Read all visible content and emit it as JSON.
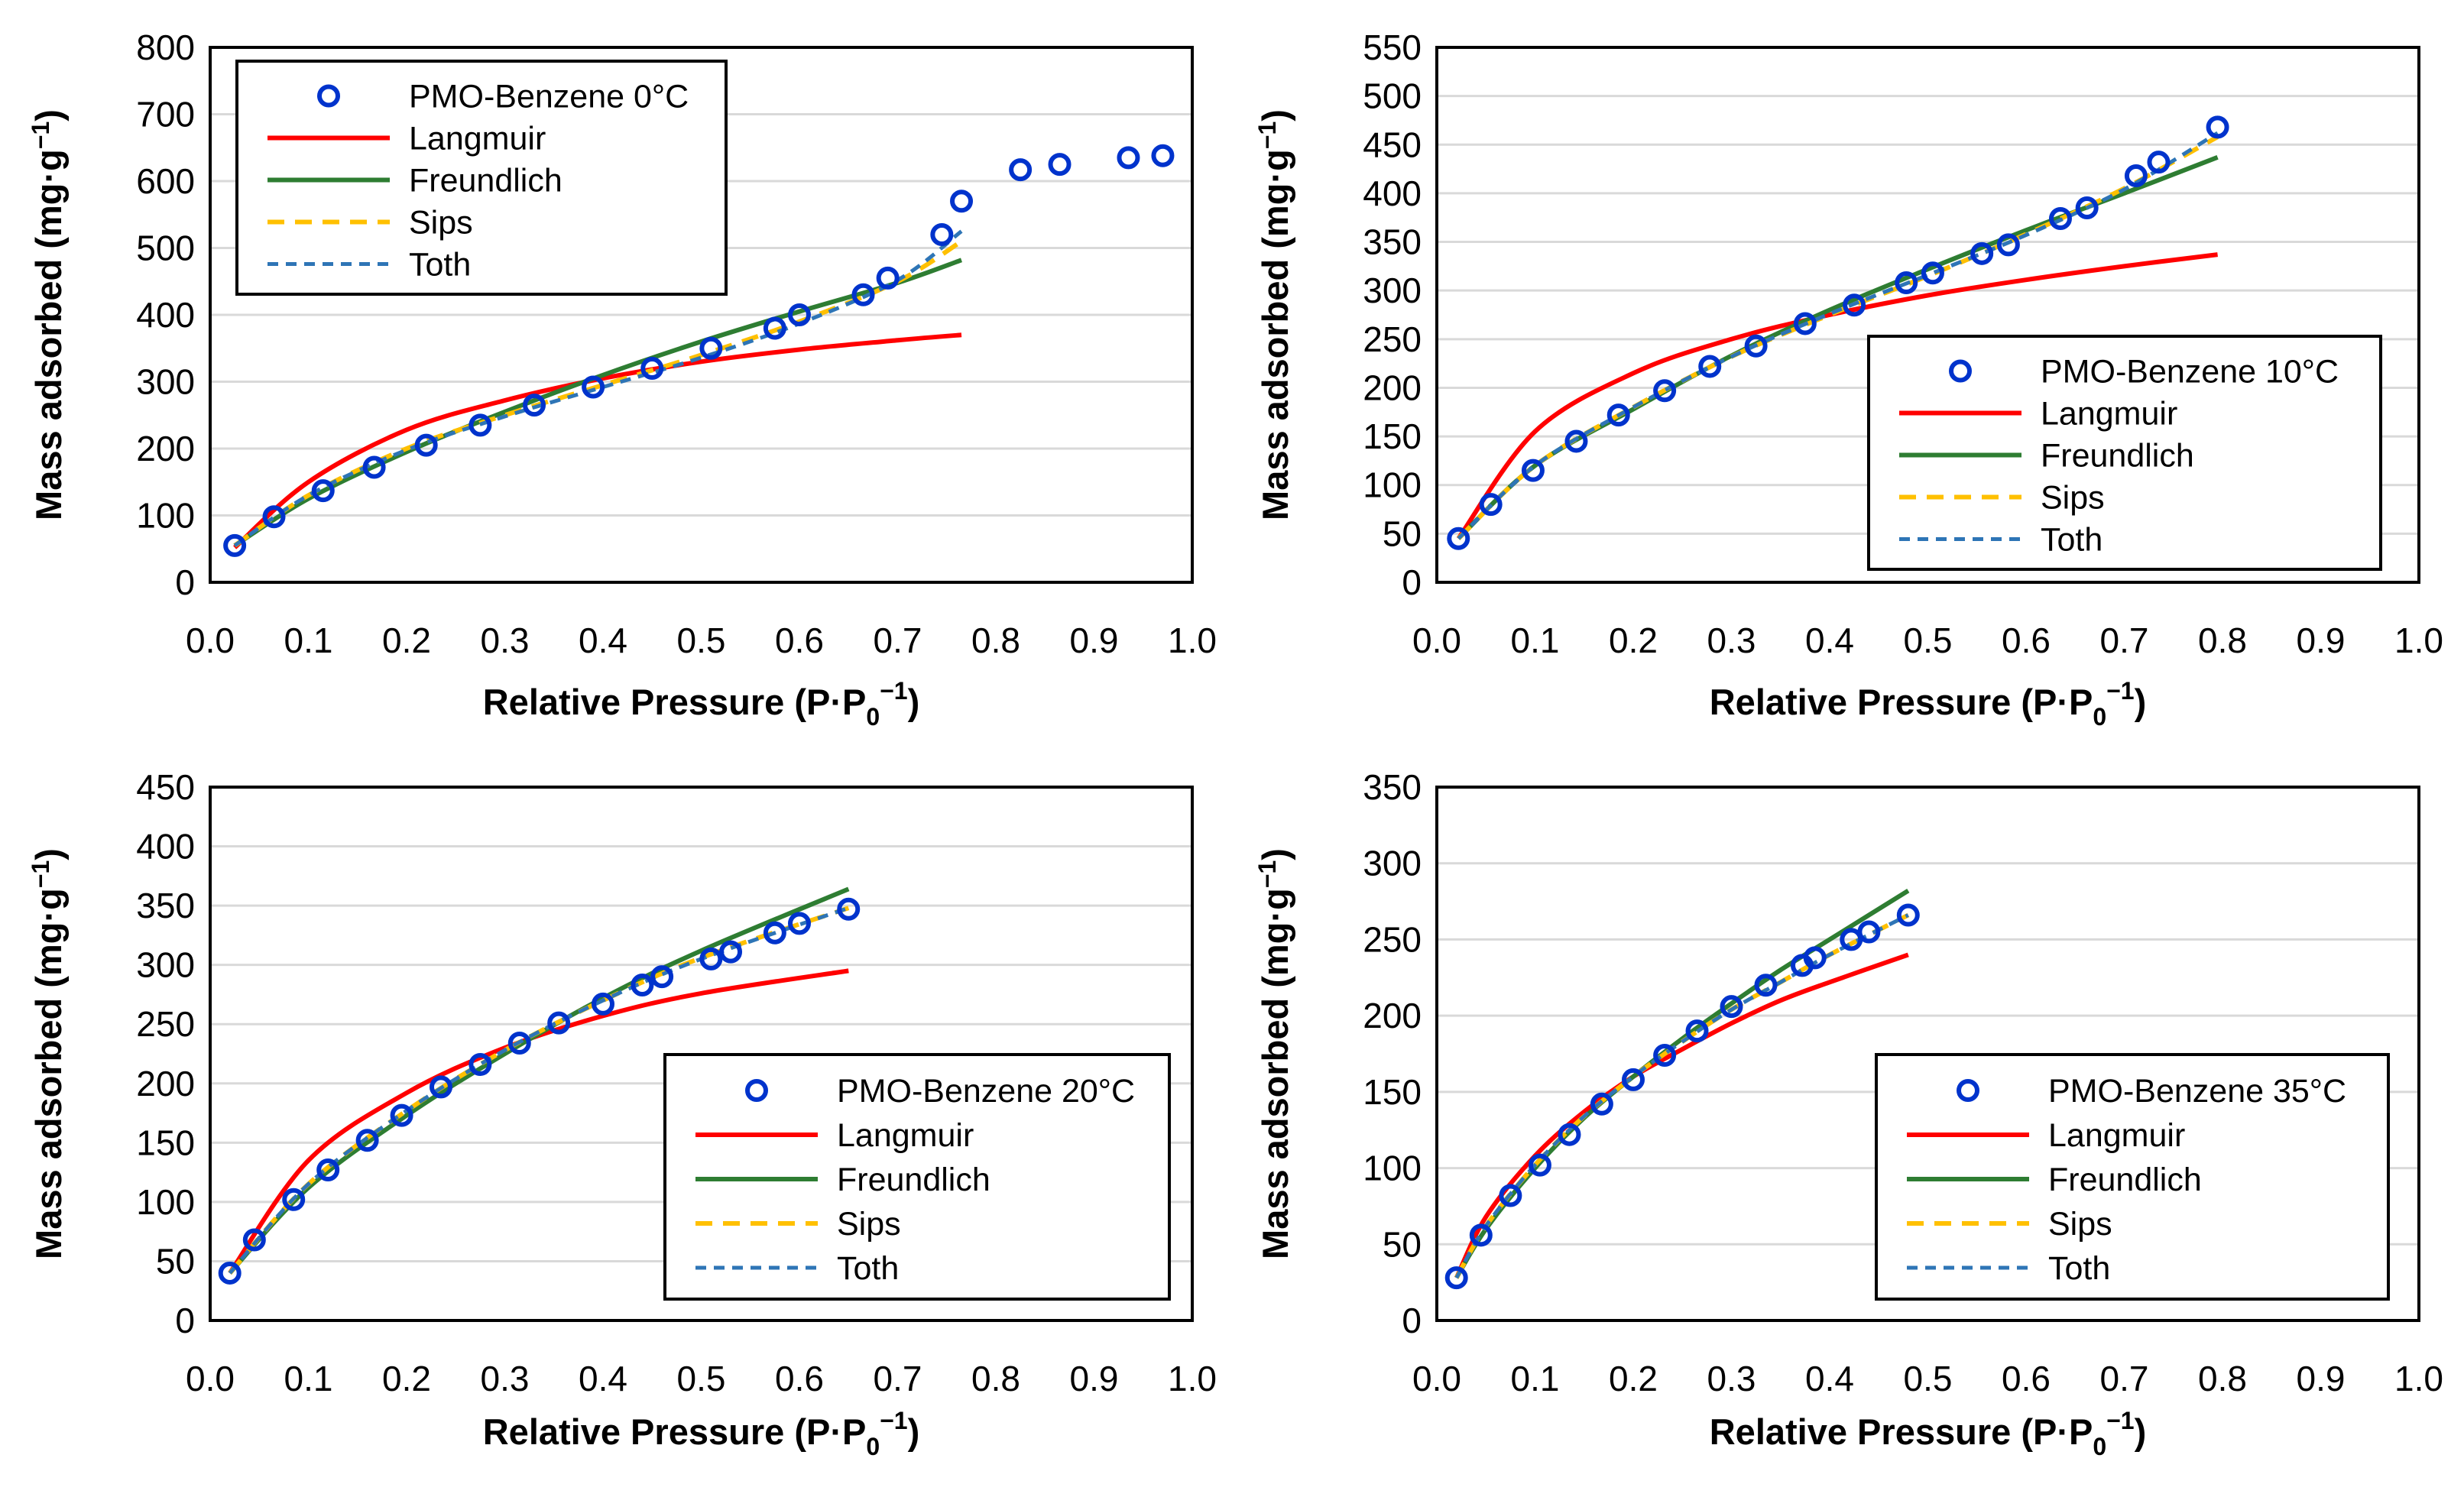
{
  "colors": {
    "data": "#0033cc",
    "langmuir": "#ff0000",
    "freundlich": "#2e7d32",
    "sips": "#ffc000",
    "toth": "#2e75b6",
    "grid": "#d9d9d9"
  },
  "chart_data": [
    {
      "type": "scatter",
      "panel": "top-left",
      "xlabel": "Relative Pressure (P·P",
      "xlabel_sub": "0",
      "xlabel_sup": "−1",
      "xlabel_end": ")",
      "ylabel": "Mass adsorbed (mg·g",
      "ylabel_sup": "−1",
      "ylabel_end": ")",
      "xlim": [
        0,
        1
      ],
      "xstep": 0.1,
      "ylim": [
        0,
        800
      ],
      "ystep": 100,
      "legend_position": "top-left",
      "legend": [
        "PMO-Benzene 0°C",
        "Langmuir",
        "Freundlich",
        "Sips",
        "Toth"
      ],
      "series": [
        {
          "name": "PMO-Benzene 0°C",
          "kind": "markers",
          "x": [
            0.025,
            0.065,
            0.115,
            0.167,
            0.22,
            0.275,
            0.33,
            0.39,
            0.45,
            0.51,
            0.575,
            0.6,
            0.665,
            0.69,
            0.745,
            0.765,
            0.825,
            0.865,
            0.935,
            0.97
          ],
          "y": [
            55,
            98,
            137,
            172,
            205,
            235,
            265,
            292,
            320,
            350,
            380,
            400,
            430,
            455,
            520,
            570,
            617,
            625,
            635,
            638
          ]
        },
        {
          "name": "Langmuir",
          "kind": "line",
          "x": [
            0.025,
            0.1,
            0.2,
            0.3,
            0.4,
            0.5,
            0.6,
            0.7,
            0.765
          ],
          "y": [
            52,
            150,
            228,
            272,
            305,
            330,
            348,
            362,
            370
          ]
        },
        {
          "name": "Freundlich",
          "kind": "line",
          "x": [
            0.025,
            0.1,
            0.2,
            0.3,
            0.4,
            0.5,
            0.6,
            0.7,
            0.765
          ],
          "y": [
            55,
            125,
            195,
            255,
            310,
            360,
            405,
            448,
            482
          ]
        },
        {
          "name": "Sips",
          "kind": "line",
          "x": [
            0.025,
            0.1,
            0.2,
            0.3,
            0.4,
            0.5,
            0.6,
            0.7,
            0.765
          ],
          "y": [
            55,
            130,
            200,
            250,
            295,
            340,
            390,
            450,
            510
          ]
        },
        {
          "name": "Toth",
          "kind": "line",
          "x": [
            0.025,
            0.1,
            0.2,
            0.3,
            0.4,
            0.5,
            0.6,
            0.7,
            0.765
          ],
          "y": [
            55,
            130,
            198,
            248,
            292,
            336,
            387,
            452,
            525
          ]
        }
      ]
    },
    {
      "type": "scatter",
      "panel": "top-right",
      "xlabel": "Relative Pressure (P·P",
      "xlabel_sub": "0",
      "xlabel_sup": "−1",
      "xlabel_end": ")",
      "ylabel": "Mass adsorbed (mg·g",
      "ylabel_sup": "−1",
      "ylabel_end": ")",
      "xlim": [
        0,
        1
      ],
      "xstep": 0.1,
      "ylim": [
        0,
        550
      ],
      "ystep": 50,
      "legend_position": "bottom-right",
      "legend": [
        "PMO-Benzene 10°C",
        "Langmuir",
        "Freundlich",
        "Sips",
        "Toth"
      ],
      "series": [
        {
          "name": "PMO-Benzene 10°C",
          "kind": "markers",
          "x": [
            0.022,
            0.055,
            0.098,
            0.142,
            0.185,
            0.232,
            0.278,
            0.325,
            0.375,
            0.425,
            0.478,
            0.505,
            0.555,
            0.582,
            0.635,
            0.662,
            0.712,
            0.735,
            0.795
          ],
          "y": [
            45,
            80,
            115,
            145,
            172,
            197,
            222,
            243,
            266,
            285,
            308,
            318,
            338,
            347,
            374,
            385,
            418,
            432,
            468
          ]
        },
        {
          "name": "Langmuir",
          "kind": "line",
          "x": [
            0.022,
            0.1,
            0.2,
            0.3,
            0.4,
            0.5,
            0.6,
            0.7,
            0.795
          ],
          "y": [
            45,
            155,
            215,
            250,
            275,
            295,
            311,
            325,
            337
          ]
        },
        {
          "name": "Freundlich",
          "kind": "line",
          "x": [
            0.022,
            0.1,
            0.2,
            0.3,
            0.4,
            0.5,
            0.6,
            0.7,
            0.795
          ],
          "y": [
            45,
            120,
            178,
            233,
            280,
            322,
            362,
            400,
            437
          ]
        },
        {
          "name": "Sips",
          "kind": "line",
          "x": [
            0.022,
            0.1,
            0.2,
            0.3,
            0.4,
            0.5,
            0.6,
            0.7,
            0.795
          ],
          "y": [
            45,
            120,
            180,
            232,
            275,
            315,
            358,
            405,
            458
          ]
        },
        {
          "name": "Toth",
          "kind": "line",
          "x": [
            0.022,
            0.1,
            0.2,
            0.3,
            0.4,
            0.5,
            0.6,
            0.7,
            0.795
          ],
          "y": [
            45,
            120,
            180,
            232,
            276,
            316,
            357,
            404,
            462
          ]
        }
      ]
    },
    {
      "type": "scatter",
      "panel": "bottom-left",
      "xlabel": "Relative Pressure (P·P",
      "xlabel_sub": "0",
      "xlabel_sup": "−1",
      "xlabel_end": ")",
      "ylabel": "Mass adsorbed (mg·g",
      "ylabel_sup": "−1",
      "ylabel_end": ")",
      "xlim": [
        0,
        1
      ],
      "xstep": 0.1,
      "ylim": [
        0,
        450
      ],
      "ystep": 50,
      "legend_position": "bottom-right",
      "legend": [
        "PMO-Benzene 20°C",
        "Langmuir",
        "Freundlich",
        "Sips",
        "Toth"
      ],
      "series": [
        {
          "name": "PMO-Benzene 20°C",
          "kind": "markers",
          "x": [
            0.02,
            0.045,
            0.085,
            0.12,
            0.16,
            0.195,
            0.235,
            0.275,
            0.315,
            0.355,
            0.4,
            0.44,
            0.46,
            0.51,
            0.53,
            0.575,
            0.6,
            0.65
          ],
          "y": [
            40,
            68,
            102,
            127,
            152,
            173,
            197,
            216,
            234,
            251,
            267,
            283,
            290,
            305,
            311,
            327,
            335,
            347
          ]
        },
        {
          "name": "Langmuir",
          "kind": "line",
          "x": [
            0.02,
            0.1,
            0.2,
            0.3,
            0.4,
            0.5,
            0.65
          ],
          "y": [
            40,
            135,
            192,
            230,
            257,
            276,
            295
          ]
        },
        {
          "name": "Freundlich",
          "kind": "line",
          "x": [
            0.02,
            0.1,
            0.2,
            0.3,
            0.4,
            0.5,
            0.65
          ],
          "y": [
            40,
            112,
            173,
            225,
            272,
            312,
            364
          ]
        },
        {
          "name": "Sips",
          "kind": "line",
          "x": [
            0.02,
            0.1,
            0.2,
            0.3,
            0.4,
            0.5,
            0.65
          ],
          "y": [
            40,
            115,
            177,
            228,
            270,
            306,
            348
          ]
        },
        {
          "name": "Toth",
          "kind": "line",
          "x": [
            0.02,
            0.1,
            0.2,
            0.3,
            0.4,
            0.5,
            0.65
          ],
          "y": [
            40,
            115,
            177,
            228,
            270,
            305,
            348
          ]
        }
      ]
    },
    {
      "type": "scatter",
      "panel": "bottom-right",
      "xlabel": "Relative Pressure (P·P",
      "xlabel_sub": "0",
      "xlabel_sup": "−1",
      "xlabel_end": ")",
      "ylabel": "Mass adsorbed (mg·g",
      "ylabel_sup": "−1",
      "ylabel_end": ")",
      "xlim": [
        0,
        1
      ],
      "xstep": 0.1,
      "ylim": [
        0,
        350
      ],
      "ystep": 50,
      "legend_position": "bottom-right",
      "legend": [
        "PMO-Benzene 35°C",
        "Langmuir",
        "Freundlich",
        "Sips",
        "Toth"
      ],
      "series": [
        {
          "name": "PMO-Benzene 35°C",
          "kind": "markers",
          "x": [
            0.02,
            0.045,
            0.075,
            0.105,
            0.135,
            0.168,
            0.2,
            0.232,
            0.265,
            0.3,
            0.335,
            0.372,
            0.385,
            0.422,
            0.44,
            0.48
          ],
          "y": [
            28,
            56,
            82,
            102,
            122,
            142,
            158,
            174,
            190,
            206,
            220,
            233,
            238,
            250,
            255,
            266
          ]
        },
        {
          "name": "Langmuir",
          "kind": "line",
          "x": [
            0.02,
            0.05,
            0.1,
            0.15,
            0.2,
            0.25,
            0.3,
            0.35,
            0.4,
            0.48
          ],
          "y": [
            28,
            68,
            108,
            137,
            160,
            178,
            195,
            210,
            222,
            240
          ]
        },
        {
          "name": "Freundlich",
          "kind": "line",
          "x": [
            0.02,
            0.05,
            0.1,
            0.15,
            0.2,
            0.25,
            0.3,
            0.35,
            0.4,
            0.48
          ],
          "y": [
            28,
            60,
            100,
            133,
            160,
            185,
            208,
            230,
            250,
            282
          ]
        },
        {
          "name": "Sips",
          "kind": "line",
          "x": [
            0.02,
            0.05,
            0.1,
            0.15,
            0.2,
            0.25,
            0.3,
            0.35,
            0.4,
            0.48
          ],
          "y": [
            28,
            62,
            102,
            134,
            160,
            183,
            204,
            222,
            240,
            266
          ]
        },
        {
          "name": "Toth",
          "kind": "line",
          "x": [
            0.02,
            0.05,
            0.1,
            0.15,
            0.2,
            0.25,
            0.3,
            0.35,
            0.4,
            0.48
          ],
          "y": [
            28,
            62,
            102,
            134,
            160,
            183,
            204,
            222,
            240,
            266
          ]
        }
      ]
    }
  ]
}
